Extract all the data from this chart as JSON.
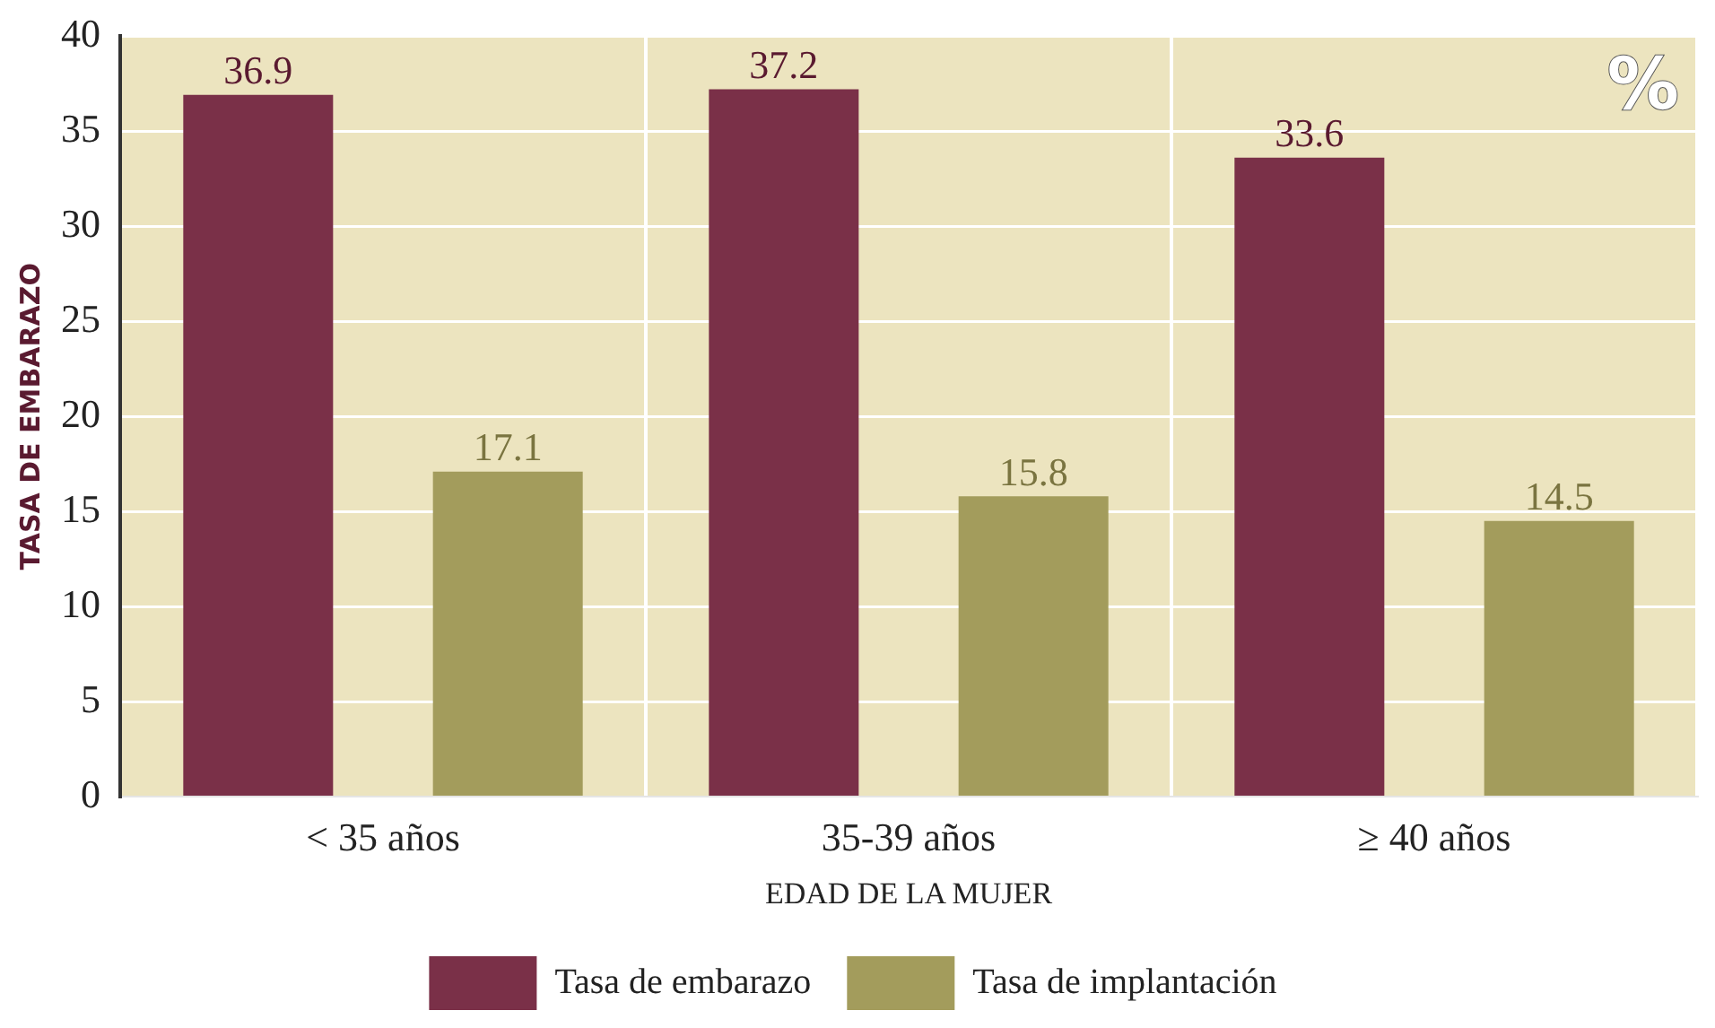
{
  "chart_data": {
    "type": "bar",
    "xlabel": "EDAD DE LA MUJER",
    "ylabel": "TASA DE EMBARAZO",
    "categories": [
      "< 35 años",
      "35-39 años",
      "≥ 40 años"
    ],
    "series": [
      {
        "name": "Tasa de embarazo",
        "color": "#7a3048",
        "values": [
          36.9,
          37.2,
          33.6
        ]
      },
      {
        "name": "Tasa de implantación",
        "color": "#a39c5c",
        "values": [
          17.1,
          15.8,
          14.5
        ]
      }
    ],
    "ylim": [
      0,
      40
    ],
    "yticks": [
      0,
      5,
      10,
      15,
      20,
      25,
      30,
      35,
      40
    ],
    "grid": true,
    "legend": "bottom",
    "data_labels": true,
    "annotations": [
      "%"
    ]
  }
}
